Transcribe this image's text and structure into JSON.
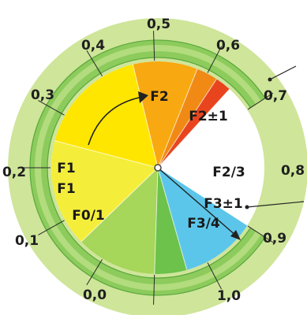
{
  "scale": {
    "ticks": [
      {
        "label": "0,0",
        "value": 0.0
      },
      {
        "label": "0,1",
        "value": 0.1
      },
      {
        "label": "0,2",
        "value": 0.2
      },
      {
        "label": "0,3",
        "value": 0.3
      },
      {
        "label": "0,4",
        "value": 0.4
      },
      {
        "label": "0,5",
        "value": 0.5
      },
      {
        "label": "0,6",
        "value": 0.6
      },
      {
        "label": "0,7",
        "value": 0.7
      },
      {
        "label": "0,8",
        "value": 0.8
      },
      {
        "label": "0,9",
        "value": 0.9
      },
      {
        "label": "1,0",
        "value": 1.0
      }
    ]
  },
  "sectors": [
    {
      "label": "F0/1",
      "from": 0.0,
      "to": 0.14,
      "color": "#5cc6ea"
    },
    {
      "label": "F1",
      "from": 0.14,
      "to": 0.2,
      "color": "#6cc24a"
    },
    {
      "label": "F1",
      "from": 0.2,
      "to": 0.35,
      "color": "#a6d65a"
    },
    {
      "label": "F2",
      "from": 0.35,
      "to": 0.55,
      "color": "#f4ee3a"
    },
    {
      "label": "F2±1",
      "from": 0.55,
      "to": 0.76,
      "color": "#ffe600"
    },
    {
      "label": "F2/3",
      "from": 0.76,
      "to": 0.88,
      "color": "#f8a810"
    },
    {
      "label": "F3±1",
      "from": 0.88,
      "to": 0.92,
      "color": "#f08a14"
    },
    {
      "label": "F3/4",
      "from": 0.92,
      "to": 0.95,
      "color": "#e8451e"
    }
  ],
  "colors": {
    "outer_disc": "#cfe59a",
    "ring": "#8ccb5c",
    "ring_light": "#b2dc7e",
    "unfilled": "#ffffff"
  }
}
